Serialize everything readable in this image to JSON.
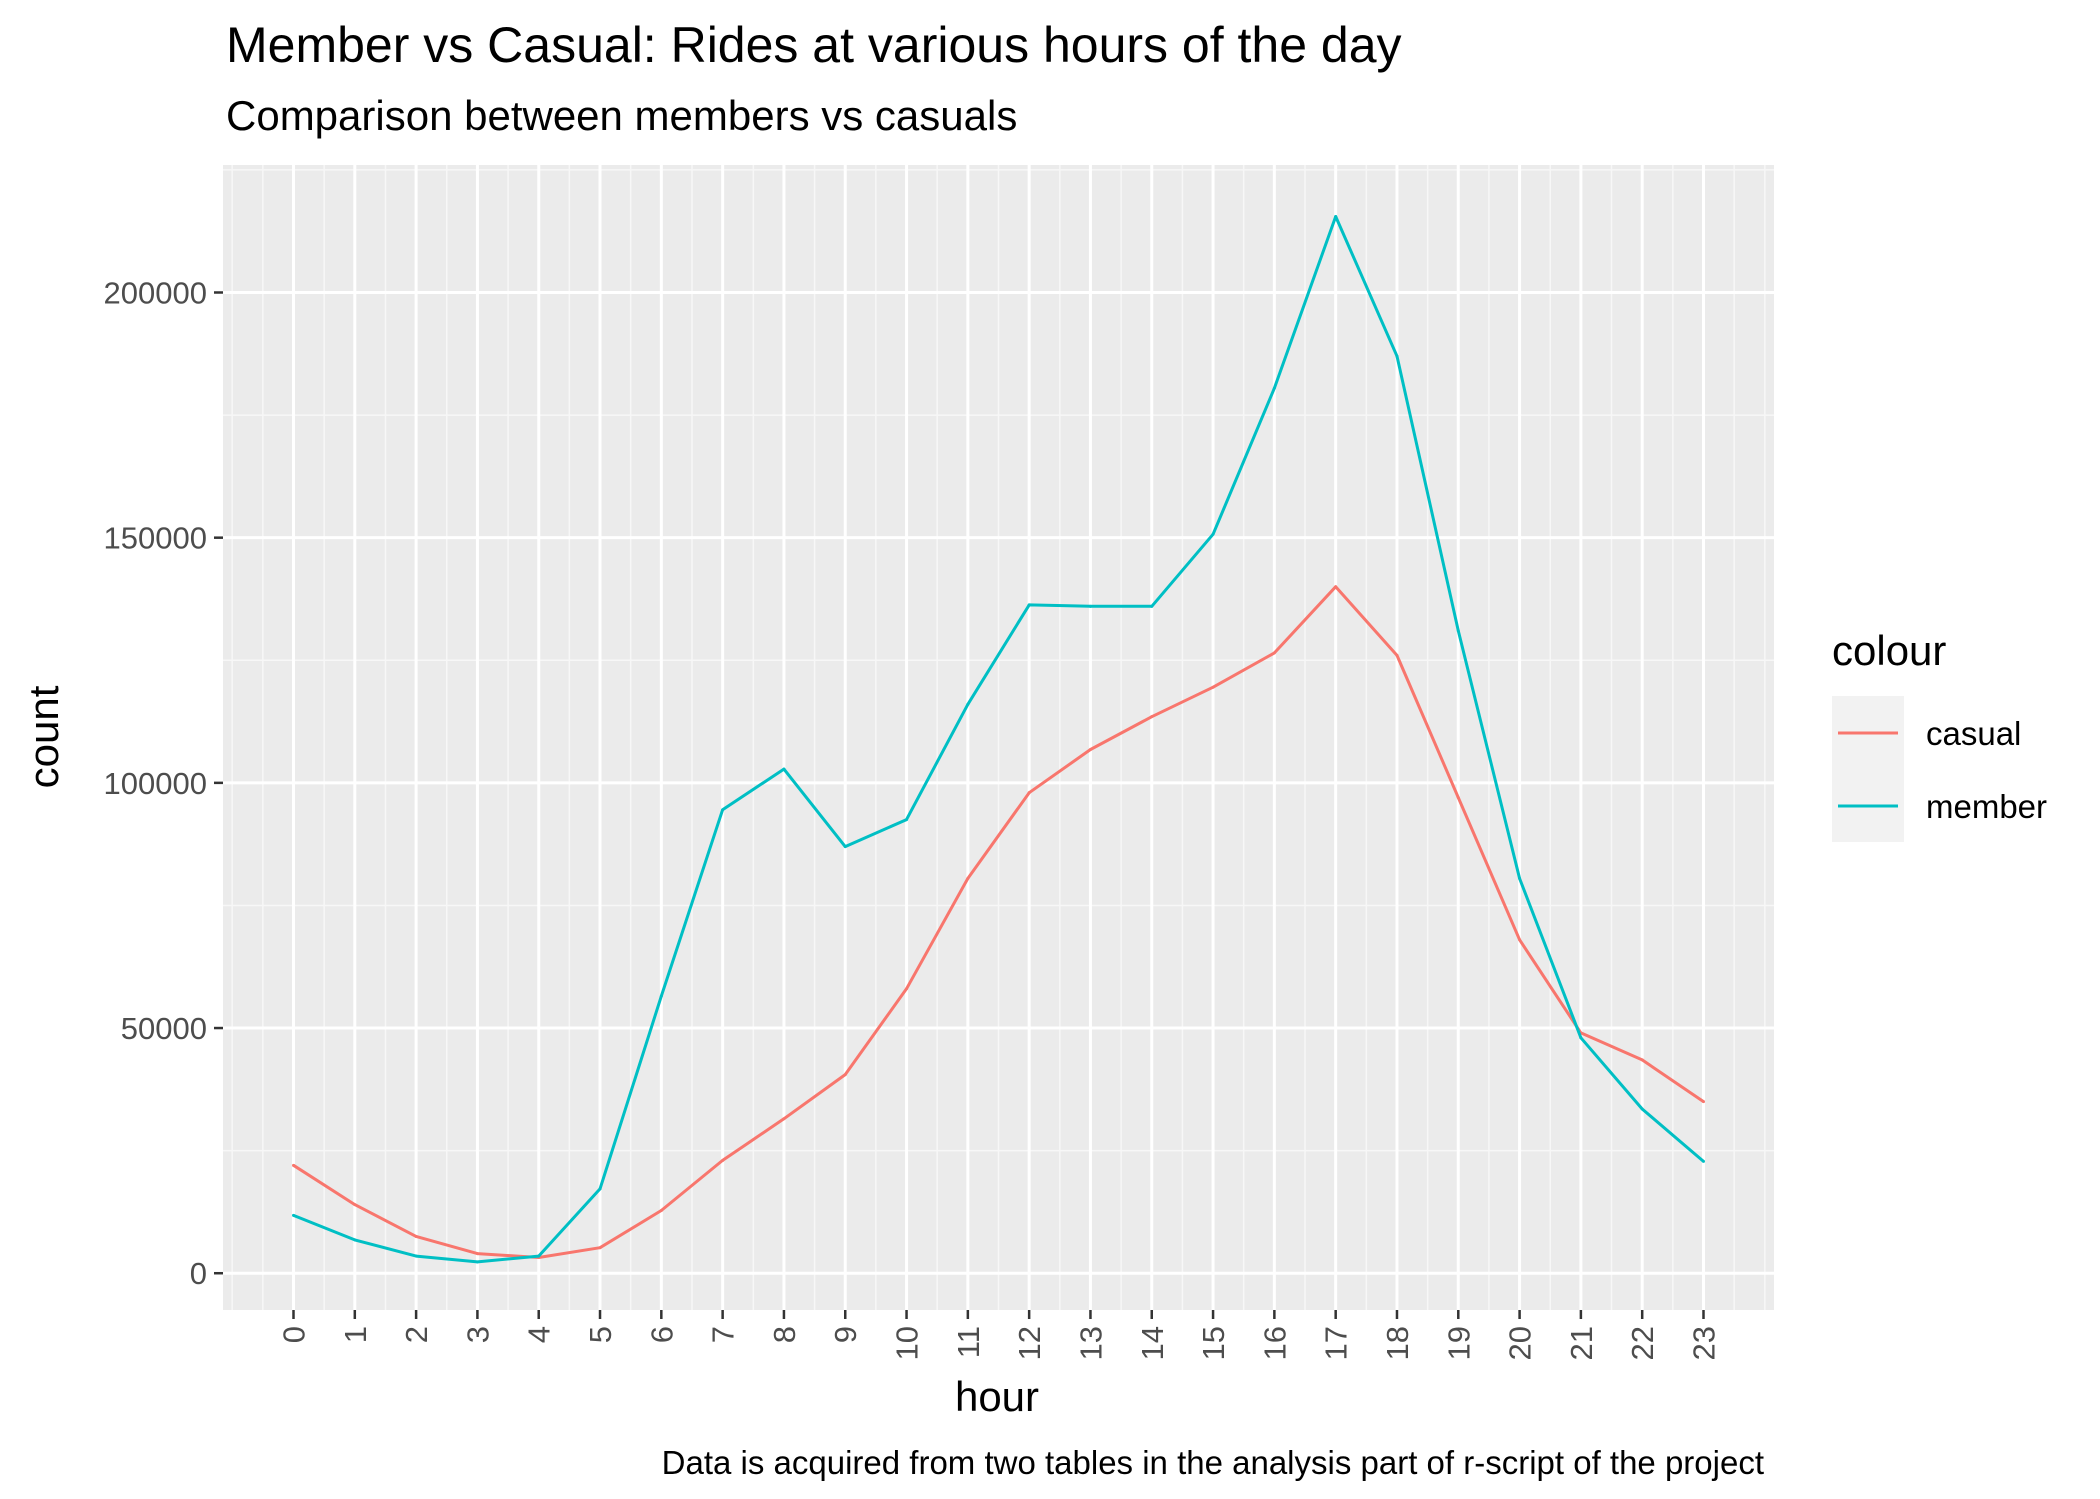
{
  "chart_data": {
    "type": "line",
    "title": "Member vs Casual: Rides at various hours of the day",
    "subtitle": "Comparison between members vs casuals",
    "xlabel": "hour",
    "ylabel": "count",
    "caption": "Data is acquired from two tables in the analysis part of r-script of the project",
    "x": [
      0,
      1,
      2,
      3,
      4,
      5,
      6,
      7,
      8,
      9,
      10,
      11,
      12,
      13,
      14,
      15,
      16,
      17,
      18,
      19,
      20,
      21,
      22,
      23
    ],
    "x_tick_labels": [
      "0",
      "1",
      "2",
      "3",
      "4",
      "5",
      "6",
      "7",
      "8",
      "9",
      "10",
      "11",
      "12",
      "13",
      "14",
      "15",
      "16",
      "17",
      "18",
      "19",
      "20",
      "21",
      "22",
      "23"
    ],
    "xlim": [
      -1.15,
      24.15
    ],
    "ylim": [
      -7500,
      226000
    ],
    "y_ticks": [
      0,
      50000,
      100000,
      150000,
      200000
    ],
    "y_tick_labels": [
      "0",
      "50000",
      "100000",
      "150000",
      "200000"
    ],
    "grid": true,
    "legend": {
      "title": "colour",
      "placement": "right"
    },
    "series": [
      {
        "name": "casual",
        "color": "#F8766D",
        "values": [
          22000,
          14000,
          7500,
          4000,
          3200,
          5200,
          12800,
          23000,
          31500,
          40500,
          58000,
          80500,
          98000,
          106800,
          113500,
          119500,
          126500,
          140000,
          126000,
          97000,
          68000,
          49000,
          43500,
          35000
        ]
      },
      {
        "name": "member",
        "color": "#00BFC4",
        "values": [
          11800,
          6800,
          3500,
          2300,
          3500,
          17200,
          56500,
          94500,
          102800,
          87000,
          92500,
          116000,
          136300,
          136000,
          136000,
          150700,
          180500,
          215500,
          187000,
          131000,
          80500,
          48000,
          33500,
          22800
        ]
      }
    ]
  }
}
